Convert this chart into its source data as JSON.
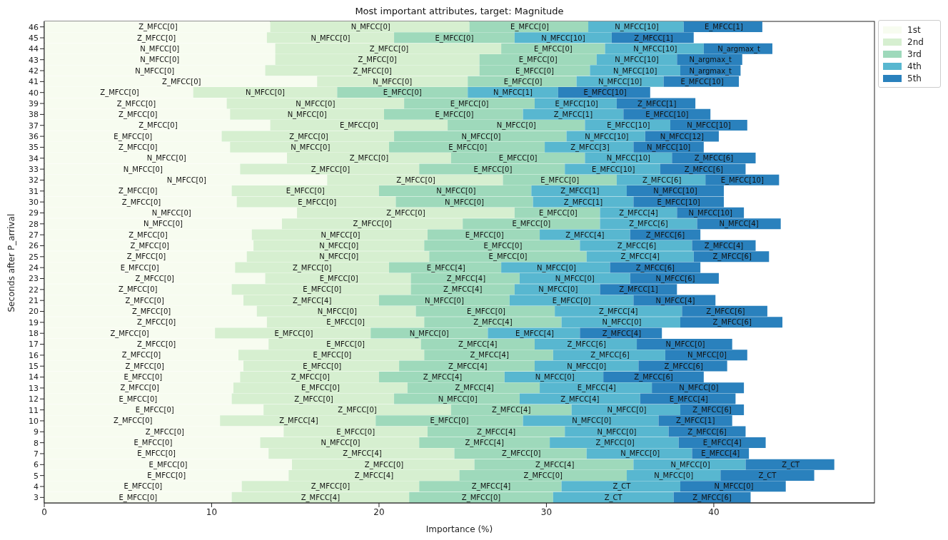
{
  "chart_data": {
    "type": "bar",
    "orientation": "horizontal",
    "stacked": true,
    "title": "Most important attributes, target: Magnitude",
    "xlabel": "Importance (%)",
    "ylabel": "Seconds after P_arrival",
    "legend": "top right",
    "grid": false,
    "xlim": [
      0,
      49.6
    ],
    "xticks": [
      0,
      10,
      20,
      30,
      40
    ],
    "categories": [
      "46",
      "45",
      "44",
      "43",
      "42",
      "41",
      "40",
      "39",
      "38",
      "37",
      "36",
      "35",
      "34",
      "33",
      "32",
      "31",
      "30",
      "29",
      "28",
      "27",
      "26",
      "25",
      "24",
      "23",
      "22",
      "21",
      "20",
      "19",
      "18",
      "17",
      "16",
      "15",
      "14",
      "13",
      "12",
      "11",
      "10",
      "9",
      "8",
      "7",
      "6",
      "5",
      "4",
      "3"
    ],
    "series": [
      {
        "name": "1st",
        "color": "#f7fcf0",
        "values": [
          13.5,
          13.3,
          13.8,
          13.8,
          13.2,
          16.3,
          8.9,
          10.9,
          11.1,
          13.5,
          10.6,
          11.1,
          14.5,
          11.7,
          16.9,
          11.2,
          11.5,
          15.1,
          14.2,
          12.4,
          12.5,
          12.1,
          11.4,
          13.2,
          11.2,
          11.9,
          12.7,
          13.3,
          10.2,
          13.4,
          11.6,
          11.9,
          11.7,
          11.3,
          11.2,
          13.1,
          10.5,
          14.3,
          12.9,
          13.4,
          14.8,
          14.6,
          11.8,
          11.2
        ]
      },
      {
        "name": "2nd",
        "color": "#d6efd0",
        "values": [
          11.9,
          7.6,
          13.5,
          12.2,
          12.8,
          9.0,
          8.6,
          10.6,
          9.2,
          10.6,
          10.3,
          9.5,
          9.8,
          10.7,
          10.5,
          8.8,
          9.5,
          13.0,
          10.8,
          10.5,
          10.2,
          10.9,
          9.2,
          8.7,
          10.7,
          8.1,
          9.5,
          9.4,
          9.3,
          9.1,
          11.1,
          9.3,
          8.3,
          10.4,
          9.7,
          11.2,
          9.3,
          8.6,
          9.5,
          11.1,
          10.9,
          10.2,
          10.6,
          10.6
        ]
      },
      {
        "name": "3rd",
        "color": "#9ed9bb",
        "values": [
          7.1,
          7.2,
          6.2,
          7.0,
          6.6,
          6.5,
          7.8,
          7.8,
          8.3,
          8.2,
          10.3,
          9.3,
          8.0,
          8.7,
          6.8,
          9.1,
          8.2,
          5.1,
          8.2,
          6.7,
          9.3,
          9.4,
          6.7,
          6.5,
          6.2,
          7.8,
          8.3,
          8.2,
          7.0,
          6.8,
          7.7,
          8.1,
          7.5,
          7.9,
          7.5,
          7.2,
          8.8,
          8.2,
          7.8,
          7.9,
          9.5,
          10.0,
          8.5,
          8.6
        ]
      },
      {
        "name": "4th",
        "color": "#58b7d0",
        "values": [
          5.7,
          5.8,
          5.9,
          4.8,
          5.4,
          5.2,
          5.4,
          4.9,
          6.0,
          5.1,
          4.7,
          5.3,
          5.2,
          5.7,
          5.3,
          5.7,
          6.0,
          4.6,
          5.8,
          5.4,
          6.7,
          6.4,
          6.5,
          6.6,
          5.1,
          7.4,
          7.6,
          7.1,
          5.5,
          6.1,
          6.7,
          6.2,
          5.9,
          6.7,
          7.2,
          6.5,
          8.1,
          6.2,
          7.7,
          6.3,
          6.7,
          5.6,
          7.1,
          7.2
        ]
      },
      {
        "name": "5th",
        "color": "#2a81bd",
        "values": [
          4.7,
          4.9,
          4.1,
          3.9,
          3.6,
          4.5,
          5.5,
          4.7,
          5.2,
          4.6,
          4.4,
          4.2,
          5.0,
          5.1,
          4.4,
          5.8,
          5.4,
          4.0,
          5.0,
          4.2,
          3.8,
          4.5,
          5.4,
          5.3,
          4.6,
          4.9,
          5.1,
          6.1,
          4.9,
          5.7,
          4.9,
          5.3,
          6.0,
          5.5,
          5.7,
          3.8,
          4.4,
          4.6,
          5.2,
          3.4,
          5.3,
          5.6,
          6.3,
          4.6
        ]
      }
    ],
    "annotations": [
      {
        "text": "Z_MFCC[0]",
        "x": 6.8,
        "y": "46"
      },
      {
        "text": "N_MFCC[0]",
        "x": 19.5,
        "y": "46"
      },
      {
        "text": "E_MFCC[0]",
        "x": 29.0,
        "y": "46"
      },
      {
        "text": "N_MFCC[10]",
        "x": 35.4,
        "y": "46"
      },
      {
        "text": "E_MFCC[1]",
        "x": 40.6,
        "y": "46"
      },
      {
        "text": "Z_MFCC[0]",
        "x": 6.7,
        "y": "45"
      },
      {
        "text": "N_MFCC[0]",
        "x": 17.1,
        "y": "45"
      },
      {
        "text": "E_MFCC[0]",
        "x": 24.5,
        "y": "45"
      },
      {
        "text": "N_MFCC[10]",
        "x": 31.0,
        "y": "45"
      },
      {
        "text": "Z_MFCC[1]",
        "x": 36.4,
        "y": "45"
      },
      {
        "text": "N_MFCC[0]",
        "x": 6.9,
        "y": "44"
      },
      {
        "text": "Z_MFCC[0]",
        "x": 20.6,
        "y": "44"
      },
      {
        "text": "E_MFCC[0]",
        "x": 30.4,
        "y": "44"
      },
      {
        "text": "N_MFCC[10]",
        "x": 36.5,
        "y": "44"
      },
      {
        "text": "N_argmax_t",
        "x": 41.5,
        "y": "44"
      },
      {
        "text": "N_MFCC[0]",
        "x": 6.9,
        "y": "43"
      },
      {
        "text": "Z_MFCC[0]",
        "x": 19.9,
        "y": "43"
      },
      {
        "text": "E_MFCC[0]",
        "x": 29.5,
        "y": "43"
      },
      {
        "text": "N_MFCC[10]",
        "x": 35.4,
        "y": "43"
      },
      {
        "text": "N_argmax_t",
        "x": 39.8,
        "y": "43"
      },
      {
        "text": "N_MFCC[0]",
        "x": 6.6,
        "y": "42"
      },
      {
        "text": "Z_MFCC[0]",
        "x": 19.6,
        "y": "42"
      },
      {
        "text": "E_MFCC[0]",
        "x": 29.3,
        "y": "42"
      },
      {
        "text": "N_MFCC[10]",
        "x": 35.3,
        "y": "42"
      },
      {
        "text": "N_argmax_t",
        "x": 39.8,
        "y": "42"
      },
      {
        "text": "Z_MFCC[0]",
        "x": 8.2,
        "y": "41"
      },
      {
        "text": "N_MFCC[0]",
        "x": 20.8,
        "y": "41"
      },
      {
        "text": "E_MFCC[0]",
        "x": 28.6,
        "y": "41"
      },
      {
        "text": "N_MFCC[10]",
        "x": 34.4,
        "y": "41"
      },
      {
        "text": "E_MFCC[10]",
        "x": 39.3,
        "y": "41"
      },
      {
        "text": "Z_MFCC[0]",
        "x": 4.5,
        "y": "40"
      },
      {
        "text": "N_MFCC[0]",
        "x": 13.2,
        "y": "40"
      },
      {
        "text": "E_MFCC[0]",
        "x": 21.4,
        "y": "40"
      },
      {
        "text": "N_MFCC[1]",
        "x": 28.0,
        "y": "40"
      },
      {
        "text": "E_MFCC[10]",
        "x": 33.5,
        "y": "40"
      },
      {
        "text": "Z_MFCC[0]",
        "x": 5.5,
        "y": "39"
      },
      {
        "text": "N_MFCC[0]",
        "x": 16.2,
        "y": "39"
      },
      {
        "text": "E_MFCC[0]",
        "x": 25.4,
        "y": "39"
      },
      {
        "text": "E_MFCC[10]",
        "x": 31.8,
        "y": "39"
      },
      {
        "text": "Z_MFCC[1]",
        "x": 36.6,
        "y": "39"
      },
      {
        "text": "Z_MFCC[0]",
        "x": 5.6,
        "y": "38"
      },
      {
        "text": "N_MFCC[0]",
        "x": 15.7,
        "y": "38"
      },
      {
        "text": "E_MFCC[0]",
        "x": 24.5,
        "y": "38"
      },
      {
        "text": "Z_MFCC[1]",
        "x": 31.6,
        "y": "38"
      },
      {
        "text": "E_MFCC[10]",
        "x": 37.2,
        "y": "38"
      },
      {
        "text": "Z_MFCC[0]",
        "x": 6.8,
        "y": "37"
      },
      {
        "text": "E_MFCC[0]",
        "x": 18.8,
        "y": "37"
      },
      {
        "text": "N_MFCC[0]",
        "x": 28.2,
        "y": "37"
      },
      {
        "text": "E_MFCC[10]",
        "x": 34.9,
        "y": "37"
      },
      {
        "text": "N_MFCC[10]",
        "x": 39.7,
        "y": "37"
      },
      {
        "text": "E_MFCC[0]",
        "x": 5.3,
        "y": "36"
      },
      {
        "text": "Z_MFCC[0]",
        "x": 15.8,
        "y": "36"
      },
      {
        "text": "N_MFCC[0]",
        "x": 26.1,
        "y": "36"
      },
      {
        "text": "N_MFCC[10]",
        "x": 33.6,
        "y": "36"
      },
      {
        "text": "N_MFCC[12]",
        "x": 38.1,
        "y": "36"
      },
      {
        "text": "Z_MFCC[0]",
        "x": 5.6,
        "y": "35"
      },
      {
        "text": "N_MFCC[0]",
        "x": 15.9,
        "y": "35"
      },
      {
        "text": "E_MFCC[0]",
        "x": 25.3,
        "y": "35"
      },
      {
        "text": "Z_MFCC[3]",
        "x": 32.6,
        "y": "35"
      },
      {
        "text": "N_MFCC[10]",
        "x": 37.3,
        "y": "35"
      },
      {
        "text": "N_MFCC[0]",
        "x": 7.3,
        "y": "34"
      },
      {
        "text": "Z_MFCC[0]",
        "x": 19.4,
        "y": "34"
      },
      {
        "text": "E_MFCC[0]",
        "x": 28.3,
        "y": "34"
      },
      {
        "text": "N_MFCC[10]",
        "x": 34.9,
        "y": "34"
      },
      {
        "text": "Z_MFCC[6]",
        "x": 40.0,
        "y": "34"
      },
      {
        "text": "N_MFCC[0]",
        "x": 5.9,
        "y": "33"
      },
      {
        "text": "Z_MFCC[0]",
        "x": 17.1,
        "y": "33"
      },
      {
        "text": "E_MFCC[0]",
        "x": 26.8,
        "y": "33"
      },
      {
        "text": "E_MFCC[10]",
        "x": 34.0,
        "y": "33"
      },
      {
        "text": "Z_MFCC[6]",
        "x": 39.4,
        "y": "33"
      },
      {
        "text": "N_MFCC[0]",
        "x": 8.5,
        "y": "32"
      },
      {
        "text": "Z_MFCC[0]",
        "x": 22.2,
        "y": "32"
      },
      {
        "text": "E_MFCC[0]",
        "x": 30.8,
        "y": "32"
      },
      {
        "text": "Z_MFCC[6]",
        "x": 36.9,
        "y": "32"
      },
      {
        "text": "E_MFCC[10]",
        "x": 41.7,
        "y": "32"
      },
      {
        "text": "Z_MFCC[0]",
        "x": 5.6,
        "y": "31"
      },
      {
        "text": "E_MFCC[0]",
        "x": 15.6,
        "y": "31"
      },
      {
        "text": "N_MFCC[0]",
        "x": 24.6,
        "y": "31"
      },
      {
        "text": "Z_MFCC[1]",
        "x": 32.0,
        "y": "31"
      },
      {
        "text": "N_MFCC[10]",
        "x": 37.7,
        "y": "31"
      },
      {
        "text": "Z_MFCC[0]",
        "x": 5.8,
        "y": "30"
      },
      {
        "text": "E_MFCC[0]",
        "x": 16.3,
        "y": "30"
      },
      {
        "text": "N_MFCC[0]",
        "x": 25.1,
        "y": "30"
      },
      {
        "text": "Z_MFCC[1]",
        "x": 32.2,
        "y": "30"
      },
      {
        "text": "E_MFCC[10]",
        "x": 37.9,
        "y": "30"
      },
      {
        "text": "N_MFCC[0]",
        "x": 7.6,
        "y": "29"
      },
      {
        "text": "Z_MFCC[0]",
        "x": 21.6,
        "y": "29"
      },
      {
        "text": "E_MFCC[0]",
        "x": 30.7,
        "y": "29"
      },
      {
        "text": "Z_MFCC[4]",
        "x": 35.5,
        "y": "29"
      },
      {
        "text": "N_MFCC[10]",
        "x": 39.8,
        "y": "29"
      },
      {
        "text": "N_MFCC[0]",
        "x": 7.1,
        "y": "28"
      },
      {
        "text": "Z_MFCC[0]",
        "x": 19.6,
        "y": "28"
      },
      {
        "text": "E_MFCC[0]",
        "x": 29.1,
        "y": "28"
      },
      {
        "text": "Z_MFCC[6]",
        "x": 36.1,
        "y": "28"
      },
      {
        "text": "N_MFCC[4]",
        "x": 41.5,
        "y": "28"
      },
      {
        "text": "Z_MFCC[0]",
        "x": 6.2,
        "y": "27"
      },
      {
        "text": "N_MFCC[0]",
        "x": 17.7,
        "y": "27"
      },
      {
        "text": "E_MFCC[0]",
        "x": 26.3,
        "y": "27"
      },
      {
        "text": "Z_MFCC[4]",
        "x": 32.3,
        "y": "27"
      },
      {
        "text": "Z_MFCC[6]",
        "x": 37.1,
        "y": "27"
      },
      {
        "text": "Z_MFCC[0]",
        "x": 6.3,
        "y": "26"
      },
      {
        "text": "N_MFCC[0]",
        "x": 17.6,
        "y": "26"
      },
      {
        "text": "E_MFCC[0]",
        "x": 27.4,
        "y": "26"
      },
      {
        "text": "Z_MFCC[6]",
        "x": 35.4,
        "y": "26"
      },
      {
        "text": "Z_MFCC[4]",
        "x": 40.6,
        "y": "26"
      },
      {
        "text": "Z_MFCC[0]",
        "x": 6.1,
        "y": "25"
      },
      {
        "text": "N_MFCC[0]",
        "x": 17.6,
        "y": "25"
      },
      {
        "text": "E_MFCC[0]",
        "x": 27.7,
        "y": "25"
      },
      {
        "text": "Z_MFCC[4]",
        "x": 35.6,
        "y": "25"
      },
      {
        "text": "Z_MFCC[6]",
        "x": 41.1,
        "y": "25"
      },
      {
        "text": "E_MFCC[0]",
        "x": 5.7,
        "y": "24"
      },
      {
        "text": "Z_MFCC[0]",
        "x": 16.0,
        "y": "24"
      },
      {
        "text": "E_MFCC[4]",
        "x": 24.0,
        "y": "24"
      },
      {
        "text": "N_MFCC[0]",
        "x": 30.6,
        "y": "24"
      },
      {
        "text": "Z_MFCC[6]",
        "x": 36.5,
        "y": "24"
      },
      {
        "text": "Z_MFCC[0]",
        "x": 6.6,
        "y": "23"
      },
      {
        "text": "E_MFCC[0]",
        "x": 17.6,
        "y": "23"
      },
      {
        "text": "Z_MFCC[4]",
        "x": 25.2,
        "y": "23"
      },
      {
        "text": "N_MFCC[0]",
        "x": 31.7,
        "y": "23"
      },
      {
        "text": "N_MFCC[6]",
        "x": 37.7,
        "y": "23"
      },
      {
        "text": "Z_MFCC[0]",
        "x": 5.6,
        "y": "22"
      },
      {
        "text": "E_MFCC[0]",
        "x": 16.6,
        "y": "22"
      },
      {
        "text": "Z_MFCC[4]",
        "x": 25.0,
        "y": "22"
      },
      {
        "text": "N_MFCC[0]",
        "x": 30.7,
        "y": "22"
      },
      {
        "text": "Z_MFCC[1]",
        "x": 35.5,
        "y": "22"
      },
      {
        "text": "Z_MFCC[0]",
        "x": 6.0,
        "y": "21"
      },
      {
        "text": "Z_MFCC[4]",
        "x": 16.0,
        "y": "21"
      },
      {
        "text": "N_MFCC[0]",
        "x": 23.9,
        "y": "21"
      },
      {
        "text": "E_MFCC[0]",
        "x": 31.5,
        "y": "21"
      },
      {
        "text": "N_MFCC[4]",
        "x": 37.7,
        "y": "21"
      },
      {
        "text": "Z_MFCC[0]",
        "x": 6.4,
        "y": "20"
      },
      {
        "text": "N_MFCC[0]",
        "x": 17.5,
        "y": "20"
      },
      {
        "text": "E_MFCC[0]",
        "x": 26.4,
        "y": "20"
      },
      {
        "text": "Z_MFCC[4]",
        "x": 34.3,
        "y": "20"
      },
      {
        "text": "Z_MFCC[6]",
        "x": 40.7,
        "y": "20"
      },
      {
        "text": "Z_MFCC[0]",
        "x": 6.7,
        "y": "19"
      },
      {
        "text": "E_MFCC[0]",
        "x": 18.0,
        "y": "19"
      },
      {
        "text": "Z_MFCC[4]",
        "x": 26.8,
        "y": "19"
      },
      {
        "text": "N_MFCC[0]",
        "x": 34.5,
        "y": "19"
      },
      {
        "text": "Z_MFCC[6]",
        "x": 41.1,
        "y": "19"
      },
      {
        "text": "Z_MFCC[0]",
        "x": 5.1,
        "y": "18"
      },
      {
        "text": "E_MFCC[0]",
        "x": 14.9,
        "y": "18"
      },
      {
        "text": "N_MFCC[0]",
        "x": 23.0,
        "y": "18"
      },
      {
        "text": "E_MFCC[4]",
        "x": 29.3,
        "y": "18"
      },
      {
        "text": "Z_MFCC[4]",
        "x": 34.5,
        "y": "18"
      },
      {
        "text": "Z_MFCC[0]",
        "x": 6.7,
        "y": "17"
      },
      {
        "text": "E_MFCC[0]",
        "x": 18.0,
        "y": "17"
      },
      {
        "text": "Z_MFCC[4]",
        "x": 25.9,
        "y": "17"
      },
      {
        "text": "Z_MFCC[6]",
        "x": 32.4,
        "y": "17"
      },
      {
        "text": "N_MFCC[0]",
        "x": 38.3,
        "y": "17"
      },
      {
        "text": "Z_MFCC[0]",
        "x": 5.8,
        "y": "16"
      },
      {
        "text": "E_MFCC[0]",
        "x": 17.2,
        "y": "16"
      },
      {
        "text": "Z_MFCC[4]",
        "x": 26.6,
        "y": "16"
      },
      {
        "text": "Z_MFCC[6]",
        "x": 33.8,
        "y": "16"
      },
      {
        "text": "N_MFCC[0]",
        "x": 39.6,
        "y": "16"
      },
      {
        "text": "Z_MFCC[0]",
        "x": 6.0,
        "y": "15"
      },
      {
        "text": "E_MFCC[0]",
        "x": 16.6,
        "y": "15"
      },
      {
        "text": "Z_MFCC[4]",
        "x": 25.3,
        "y": "15"
      },
      {
        "text": "N_MFCC[0]",
        "x": 32.4,
        "y": "15"
      },
      {
        "text": "Z_MFCC[6]",
        "x": 38.2,
        "y": "15"
      },
      {
        "text": "E_MFCC[0]",
        "x": 5.9,
        "y": "14"
      },
      {
        "text": "Z_MFCC[0]",
        "x": 15.9,
        "y": "14"
      },
      {
        "text": "Z_MFCC[4]",
        "x": 23.8,
        "y": "14"
      },
      {
        "text": "N_MFCC[0]",
        "x": 30.5,
        "y": "14"
      },
      {
        "text": "Z_MFCC[6]",
        "x": 36.4,
        "y": "14"
      },
      {
        "text": "Z_MFCC[0]",
        "x": 5.7,
        "y": "13"
      },
      {
        "text": "E_MFCC[0]",
        "x": 16.5,
        "y": "13"
      },
      {
        "text": "Z_MFCC[4]",
        "x": 25.7,
        "y": "13"
      },
      {
        "text": "E_MFCC[4]",
        "x": 33.0,
        "y": "13"
      },
      {
        "text": "N_MFCC[0]",
        "x": 39.1,
        "y": "13"
      },
      {
        "text": "E_MFCC[0]",
        "x": 5.6,
        "y": "12"
      },
      {
        "text": "Z_MFCC[0]",
        "x": 16.1,
        "y": "12"
      },
      {
        "text": "N_MFCC[0]",
        "x": 24.7,
        "y": "12"
      },
      {
        "text": "Z_MFCC[4]",
        "x": 32.0,
        "y": "12"
      },
      {
        "text": "E_MFCC[4]",
        "x": 38.5,
        "y": "12"
      },
      {
        "text": "E_MFCC[0]",
        "x": 6.6,
        "y": "11"
      },
      {
        "text": "Z_MFCC[0]",
        "x": 18.7,
        "y": "11"
      },
      {
        "text": "Z_MFCC[4]",
        "x": 27.9,
        "y": "11"
      },
      {
        "text": "N_MFCC[0]",
        "x": 34.8,
        "y": "11"
      },
      {
        "text": "Z_MFCC[6]",
        "x": 39.9,
        "y": "11"
      },
      {
        "text": "Z_MFCC[0]",
        "x": 5.3,
        "y": "10"
      },
      {
        "text": "Z_MFCC[4]",
        "x": 15.2,
        "y": "10"
      },
      {
        "text": "E_MFCC[0]",
        "x": 24.2,
        "y": "10"
      },
      {
        "text": "N_MFCC[0]",
        "x": 32.7,
        "y": "10"
      },
      {
        "text": "Z_MFCC[1]",
        "x": 38.9,
        "y": "10"
      },
      {
        "text": "Z_MFCC[0]",
        "x": 7.2,
        "y": "9"
      },
      {
        "text": "E_MFCC[0]",
        "x": 18.6,
        "y": "9"
      },
      {
        "text": "Z_MFCC[4]",
        "x": 27.0,
        "y": "9"
      },
      {
        "text": "N_MFCC[0]",
        "x": 34.2,
        "y": "9"
      },
      {
        "text": "Z_MFCC[6]",
        "x": 39.6,
        "y": "9"
      },
      {
        "text": "E_MFCC[0]",
        "x": 6.5,
        "y": "8"
      },
      {
        "text": "N_MFCC[0]",
        "x": 17.7,
        "y": "8"
      },
      {
        "text": "Z_MFCC[4]",
        "x": 26.3,
        "y": "8"
      },
      {
        "text": "Z_MFCC[0]",
        "x": 34.1,
        "y": "8"
      },
      {
        "text": "E_MFCC[4]",
        "x": 40.5,
        "y": "8"
      },
      {
        "text": "E_MFCC[0]",
        "x": 6.7,
        "y": "7"
      },
      {
        "text": "Z_MFCC[4]",
        "x": 19.0,
        "y": "7"
      },
      {
        "text": "Z_MFCC[0]",
        "x": 28.5,
        "y": "7"
      },
      {
        "text": "N_MFCC[0]",
        "x": 35.6,
        "y": "7"
      },
      {
        "text": "E_MFCC[4]",
        "x": 40.4,
        "y": "7"
      },
      {
        "text": "E_MFCC[0]",
        "x": 7.4,
        "y": "6"
      },
      {
        "text": "Z_MFCC[0]",
        "x": 20.3,
        "y": "6"
      },
      {
        "text": "Z_MFCC[4]",
        "x": 30.5,
        "y": "6"
      },
      {
        "text": "N_MFCC[0]",
        "x": 38.6,
        "y": "6"
      },
      {
        "text": "Z_CT",
        "x": 44.6,
        "y": "6"
      },
      {
        "text": "E_MFCC[0]",
        "x": 7.3,
        "y": "5"
      },
      {
        "text": "Z_MFCC[4]",
        "x": 19.7,
        "y": "5"
      },
      {
        "text": "Z_MFCC[0]",
        "x": 29.8,
        "y": "5"
      },
      {
        "text": "N_MFCC[0]",
        "x": 37.6,
        "y": "5"
      },
      {
        "text": "Z_CT",
        "x": 43.2,
        "y": "5"
      },
      {
        "text": "E_MFCC[0]",
        "x": 5.9,
        "y": "4"
      },
      {
        "text": "Z_MFCC[0]",
        "x": 17.1,
        "y": "4"
      },
      {
        "text": "Z_MFCC[4]",
        "x": 26.7,
        "y": "4"
      },
      {
        "text": "Z_CT",
        "x": 34.5,
        "y": "4"
      },
      {
        "text": "N_MFCC[0]",
        "x": 41.2,
        "y": "4"
      },
      {
        "text": "E_MFCC[0]",
        "x": 5.6,
        "y": "3"
      },
      {
        "text": "Z_MFCC[4]",
        "x": 16.5,
        "y": "3"
      },
      {
        "text": "Z_MFCC[0]",
        "x": 26.1,
        "y": "3"
      },
      {
        "text": "Z_CT",
        "x": 34.0,
        "y": "3"
      },
      {
        "text": "Z_MFCC[6]",
        "x": 39.9,
        "y": "3"
      }
    ]
  }
}
